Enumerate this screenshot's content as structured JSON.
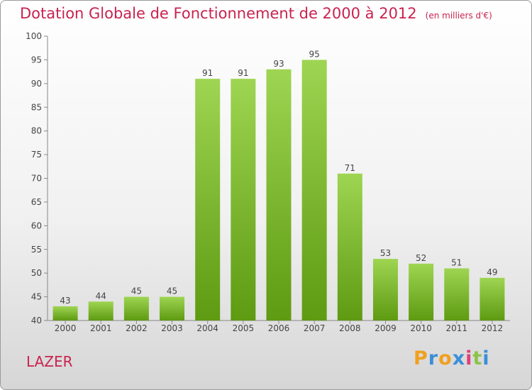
{
  "title": "Dotation Globale de Fonctionnement de 2000 à 2012",
  "unit_note": "(en milliers d'€)",
  "commune": "LAZER",
  "logo": {
    "letters": [
      "P",
      "r",
      "o",
      "x",
      "i",
      "t",
      "i"
    ],
    "colors": [
      "#f0a020",
      "#3a8fd8",
      "#f0a020",
      "#3a8fd8",
      "#e0407a",
      "#8bc34a",
      "#3a8fd8"
    ]
  },
  "colors": {
    "title": "#c8234f",
    "bar_top": "#9ed552",
    "bar_bottom": "#5e9a12"
  },
  "chart_data": {
    "type": "bar",
    "categories": [
      "2000",
      "2001",
      "2002",
      "2003",
      "2004",
      "2005",
      "2006",
      "2007",
      "2008",
      "2009",
      "2010",
      "2011",
      "2012"
    ],
    "values": [
      43,
      44,
      45,
      45,
      91,
      91,
      93,
      95,
      71,
      53,
      52,
      51,
      49
    ],
    "ylim": [
      40,
      100
    ],
    "yticks": [
      40,
      45,
      50,
      55,
      60,
      65,
      70,
      75,
      80,
      85,
      90,
      95,
      100
    ],
    "grid": false,
    "data_labels": true
  }
}
